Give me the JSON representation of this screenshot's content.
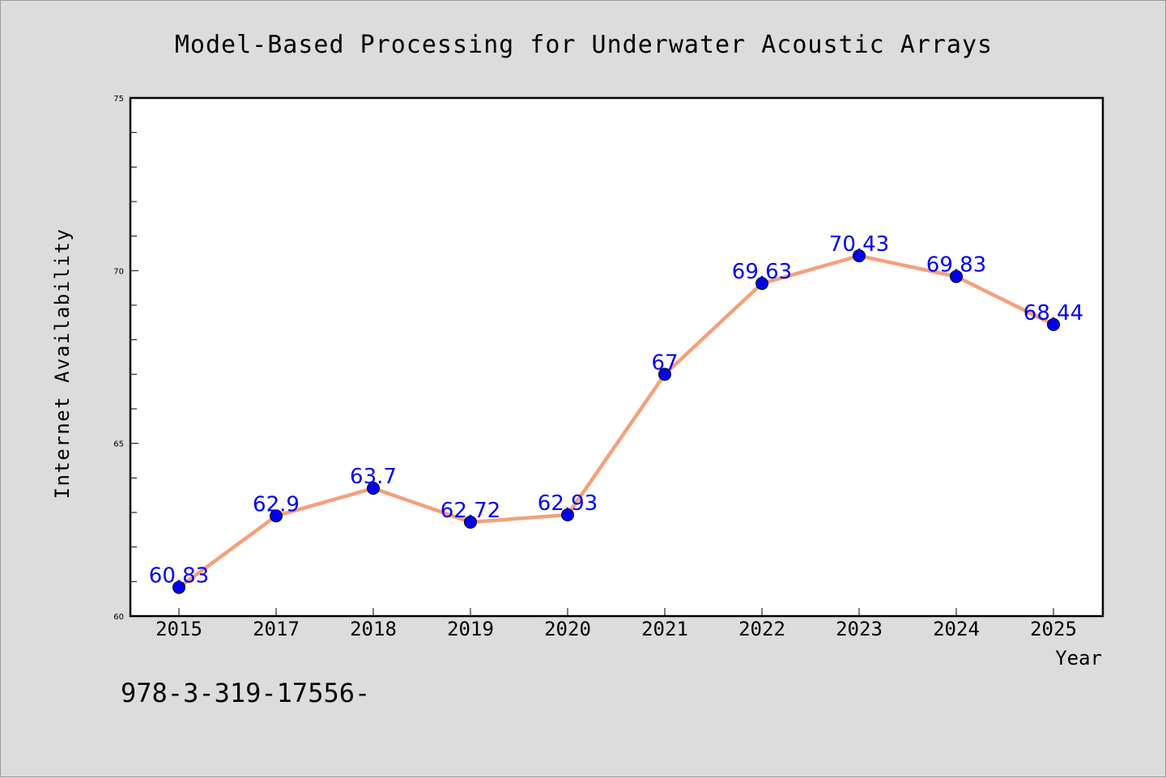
{
  "chart_data": {
    "type": "line",
    "title": "Model-Based Processing for Underwater Acoustic Arrays",
    "xlabel": "Year",
    "ylabel": "Internet Availability",
    "categories": [
      "2015",
      "2017",
      "2018",
      "2019",
      "2020",
      "2021",
      "2022",
      "2023",
      "2024",
      "2025"
    ],
    "series": [
      {
        "values": [
          60.83,
          62.9,
          63.7,
          62.72,
          62.93,
          67,
          69.63,
          70.43,
          69.83,
          68.44
        ],
        "line_color": "#f4a07c",
        "marker_color": "#0000ee",
        "label_color": "#0000ee"
      }
    ],
    "data_labels": [
      "60.83",
      "62.9",
      "63.7",
      "62.72",
      "62.93",
      "67",
      "69.63",
      "70.43",
      "69.83",
      "68.44"
    ],
    "ylim": [
      60,
      75
    ],
    "yticks_major": [
      60,
      65,
      70,
      75
    ],
    "yticks_major_labels": [
      "60",
      "65",
      "70",
      "75"
    ],
    "grid": false,
    "legend": "none"
  },
  "footer": {
    "text": "978-3-319-17556-"
  }
}
